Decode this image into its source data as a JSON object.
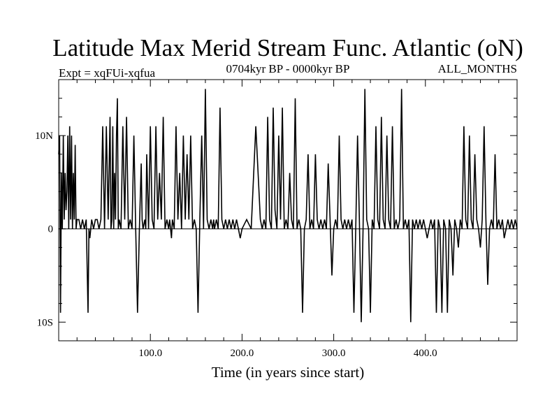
{
  "chart_data": {
    "type": "line",
    "title": "Latitude Max Merid Stream Func. Atlantic (oN)",
    "subtitle_left": "Expt = xqFUi-xqfua",
    "subtitle_center": "0704kyr BP - 0000kyr BP",
    "subtitle_right": "ALL_MONTHS",
    "xlabel": "Time (in years since start)",
    "ylabel": "",
    "xlim": [
      0,
      500
    ],
    "ylim": [
      -12,
      16
    ],
    "x_ticks": [
      {
        "value": 100,
        "label": "100.0"
      },
      {
        "value": 200,
        "label": "200.0"
      },
      {
        "value": 300,
        "label": "300.0"
      },
      {
        "value": 400,
        "label": "400.0"
      }
    ],
    "y_ticks": [
      {
        "value": 10,
        "label": "10N"
      },
      {
        "value": 0,
        "label": "0"
      },
      {
        "value": -10,
        "label": "10S"
      }
    ],
    "series": [
      {
        "color": "#000000",
        "x": [
          0,
          1,
          2,
          3,
          4,
          5,
          6,
          7,
          8,
          9,
          10,
          11,
          12,
          13,
          14,
          15,
          16,
          17,
          18,
          19,
          20,
          22,
          24,
          26,
          28,
          30,
          32,
          33,
          34,
          35,
          36,
          38,
          40,
          42,
          44,
          46,
          48,
          50,
          52,
          54,
          56,
          57,
          58,
          59,
          60,
          61,
          62,
          63,
          64,
          65,
          66,
          68,
          70,
          72,
          74,
          76,
          78,
          80,
          82,
          84,
          86,
          88,
          90,
          91,
          92,
          94,
          95,
          96,
          98,
          100,
          102,
          104,
          106,
          108,
          110,
          112,
          114,
          116,
          118,
          120,
          121,
          122,
          123,
          124,
          126,
          128,
          130,
          132,
          134,
          136,
          138,
          140,
          142,
          144,
          146,
          148,
          150,
          152,
          154,
          156,
          158,
          160,
          162,
          164,
          166,
          168,
          169,
          170,
          172,
          174,
          176,
          178,
          180,
          182,
          184,
          186,
          188,
          190,
          192,
          194,
          196,
          198,
          200,
          205,
          210,
          215,
          220,
          222,
          224,
          226,
          228,
          230,
          232,
          234,
          236,
          238,
          240,
          242,
          244,
          246,
          248,
          250,
          252,
          254,
          256,
          258,
          260,
          262,
          264,
          266,
          268,
          270,
          272,
          274,
          276,
          278,
          280,
          282,
          284,
          286,
          288,
          290,
          292,
          294,
          296,
          298,
          300,
          302,
          304,
          306,
          308,
          310,
          312,
          314,
          316,
          318,
          320,
          322,
          324,
          326,
          328,
          330,
          332,
          334,
          336,
          338,
          340,
          342,
          344,
          346,
          348,
          350,
          352,
          354,
          356,
          358,
          360,
          362,
          364,
          366,
          368,
          370,
          372,
          374,
          376,
          378,
          380,
          382,
          384,
          386,
          388,
          390,
          392,
          394,
          396,
          398,
          400,
          402,
          404,
          406,
          408,
          410,
          412,
          414,
          416,
          418,
          420,
          422,
          424,
          426,
          428,
          430,
          432,
          434,
          436,
          438,
          440,
          442,
          444,
          446,
          448,
          450,
          452,
          454,
          456,
          458,
          460,
          462,
          464,
          466,
          468,
          470,
          472,
          474,
          476,
          478,
          480,
          482,
          484,
          486,
          488,
          490,
          492,
          494,
          496,
          498,
          500
        ],
        "y": [
          8,
          10,
          -9,
          6,
          0,
          10,
          1,
          6,
          2,
          4,
          10,
          0,
          11,
          1,
          10,
          0,
          6,
          1,
          9,
          0,
          1,
          1,
          0,
          1,
          0,
          1,
          -9,
          0,
          -1,
          0,
          1,
          0,
          1,
          1,
          0,
          1,
          11,
          0,
          11,
          1,
          12,
          0,
          1,
          11,
          0,
          6,
          1,
          10,
          14,
          0,
          1,
          0,
          11,
          1,
          12,
          0,
          1,
          0,
          10,
          0,
          -9,
          0,
          7,
          1,
          0,
          1,
          0,
          8,
          0,
          11,
          1,
          0,
          11,
          1,
          6,
          1,
          12,
          0,
          1,
          0,
          1,
          0,
          -1,
          1,
          0,
          11,
          1,
          6,
          0,
          10,
          1,
          8,
          1,
          10,
          0,
          1,
          0,
          -9,
          1,
          10,
          0,
          15,
          1,
          0,
          1,
          0,
          1,
          0,
          1,
          0,
          13,
          1,
          0,
          1,
          0,
          1,
          0,
          1,
          0,
          1,
          0,
          -1,
          0,
          1,
          0,
          11,
          1,
          0,
          1,
          0,
          12,
          1,
          0,
          13,
          2,
          0,
          10,
          1,
          13,
          0,
          1,
          0,
          6,
          1,
          0,
          14,
          0,
          1,
          0,
          -9,
          0,
          1,
          8,
          0,
          1,
          0,
          8,
          1,
          0,
          1,
          0,
          1,
          0,
          7,
          1,
          -5,
          0,
          1,
          0,
          10,
          1,
          0,
          1,
          0,
          1,
          0,
          1,
          -9,
          0,
          10,
          1,
          -10,
          0,
          15,
          1,
          0,
          -9,
          1,
          0,
          11,
          1,
          0,
          12,
          1,
          0,
          10,
          1,
          0,
          11,
          0,
          1,
          0,
          1,
          15,
          0,
          1,
          0,
          1,
          -10,
          1,
          0,
          1,
          0,
          1,
          0,
          1,
          0,
          -1,
          0,
          1,
          0,
          1,
          -9,
          1,
          0,
          -9,
          1,
          0,
          -9,
          1,
          0,
          -5,
          1,
          0,
          -2,
          1,
          0,
          11,
          1,
          0,
          10,
          1,
          0,
          8,
          1,
          0,
          -2,
          1,
          11,
          1,
          -6,
          0,
          1,
          0,
          8,
          0,
          1,
          0,
          1,
          -1,
          0,
          1,
          0,
          1,
          0,
          1,
          0
        ]
      }
    ]
  }
}
